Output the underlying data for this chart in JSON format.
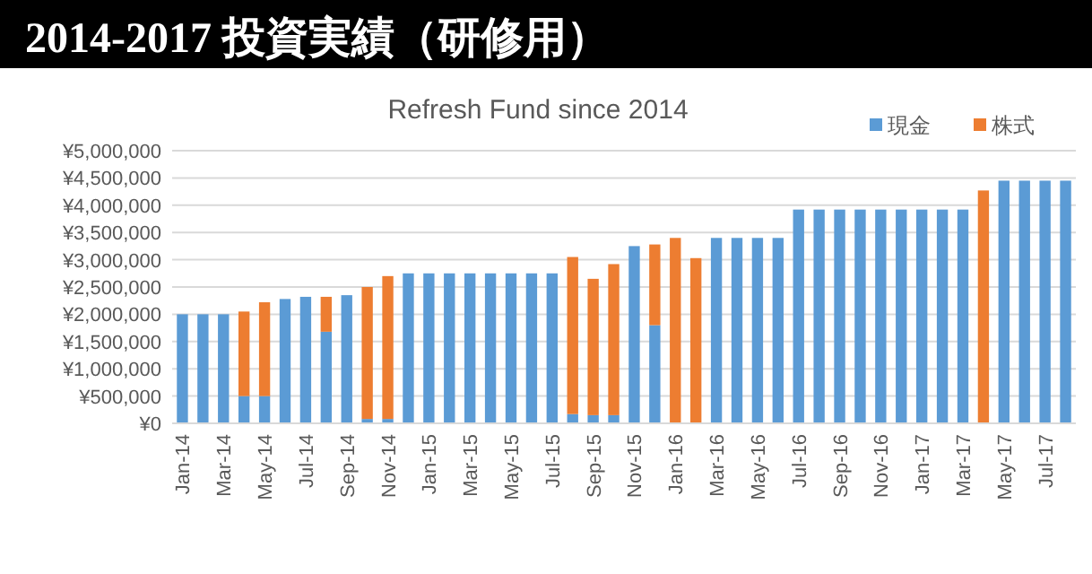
{
  "chart_data": {
    "type": "bar",
    "stacked": true,
    "title": "2014-2017 投資実績（研修用）",
    "subtitle": "Refresh Fund since 2014",
    "categories": [
      "Jan-14",
      null,
      "Mar-14",
      null,
      "May-14",
      null,
      "Jul-14",
      null,
      "Sep-14",
      null,
      "Nov-14",
      null,
      "Jan-15",
      null,
      "Mar-15",
      null,
      "May-15",
      null,
      "Jul-15",
      null,
      "Sep-15",
      null,
      "Nov-15",
      null,
      "Jan-16",
      null,
      "Mar-16",
      null,
      "May-16",
      null,
      "Jul-16",
      null,
      "Sep-16",
      null,
      "Nov-16",
      null,
      "Jan-17",
      null,
      "Mar-17",
      null,
      "May-17",
      null,
      "Jul-17",
      null
    ],
    "series": [
      {
        "name": "現金",
        "color": "#5b9bd5",
        "values": [
          2000000,
          2000000,
          2000000,
          500000,
          500000,
          2280000,
          2320000,
          1680000,
          2350000,
          80000,
          80000,
          2750000,
          2750000,
          2750000,
          2750000,
          2750000,
          2750000,
          2750000,
          2750000,
          170000,
          150000,
          150000,
          3250000,
          1800000,
          null,
          null,
          3400000,
          3400000,
          3400000,
          3400000,
          3920000,
          3920000,
          3920000,
          3920000,
          3920000,
          3920000,
          3920000,
          3920000,
          3920000,
          null,
          4450000,
          4450000,
          4450000,
          4450000
        ]
      },
      {
        "name": "株式",
        "color": "#ed7d31",
        "values": [
          null,
          null,
          null,
          1550000,
          1720000,
          null,
          null,
          640000,
          null,
          2420000,
          2620000,
          null,
          null,
          null,
          null,
          null,
          null,
          null,
          null,
          2880000,
          2500000,
          2770000,
          null,
          1480000,
          3400000,
          3030000,
          null,
          null,
          null,
          null,
          null,
          null,
          null,
          null,
          null,
          null,
          null,
          null,
          null,
          4270000,
          null,
          null,
          null,
          null
        ]
      }
    ],
    "ylim": [
      0,
      5000000
    ],
    "yticks": [
      {
        "value": 0,
        "label": "¥0"
      },
      {
        "value": 500000,
        "label": "¥500,000"
      },
      {
        "value": 1000000,
        "label": "¥1,000,000"
      },
      {
        "value": 1500000,
        "label": "¥1,500,000"
      },
      {
        "value": 2000000,
        "label": "¥2,000,000"
      },
      {
        "value": 2500000,
        "label": "¥2,500,000"
      },
      {
        "value": 3000000,
        "label": "¥3,000,000"
      },
      {
        "value": 3500000,
        "label": "¥3,500,000"
      },
      {
        "value": 4000000,
        "label": "¥4,000,000"
      },
      {
        "value": 4500000,
        "label": "¥4,500,000"
      },
      {
        "value": 5000000,
        "label": "¥5,000,000"
      }
    ],
    "grid": "y",
    "legend": "top right"
  }
}
